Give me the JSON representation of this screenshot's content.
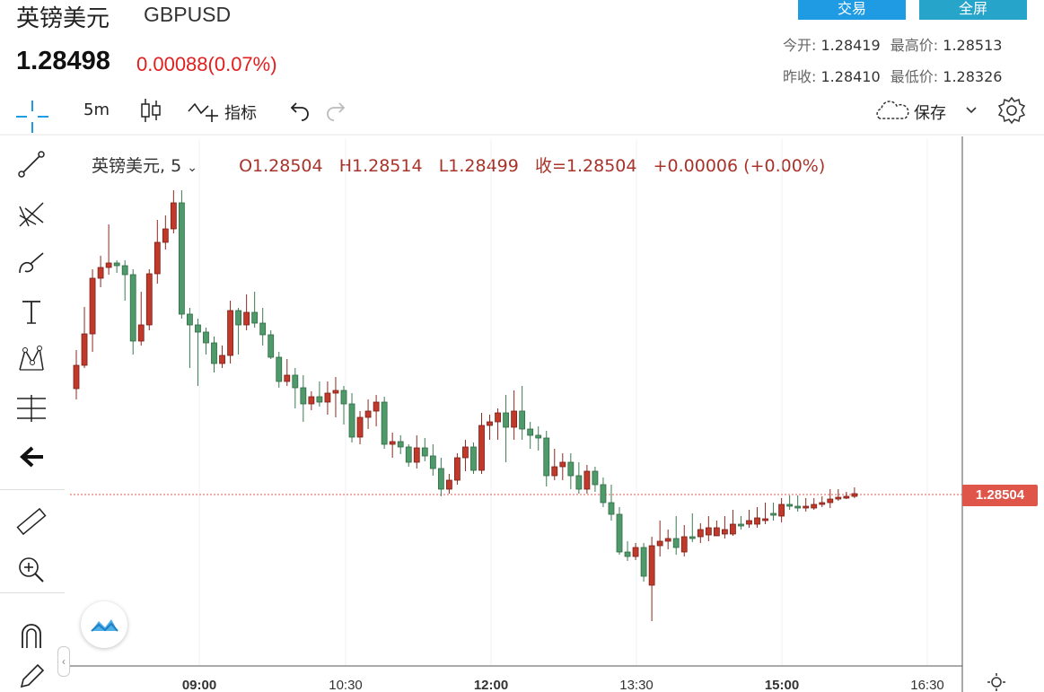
{
  "header": {
    "name_cn": "英镑美元",
    "symbol": "GBPUSD",
    "price": "1.28498",
    "change": "0.00088(0.07%)",
    "trade_button": "交易",
    "fullscreen_button": "全屏",
    "open_label": "今开:",
    "open_value": "1.28419",
    "high_label": "最高价:",
    "high_value": "1.28513",
    "prev_close_label": "昨收:",
    "prev_close_value": "1.28410",
    "low_label": "最低价:",
    "low_value": "1.28326"
  },
  "toolbar": {
    "interval": "5m",
    "indicators_label": "指标",
    "save_label": "保存"
  },
  "legend": {
    "symbol": "英镑美元,",
    "interval": "5",
    "open": "O1.28504",
    "high": "H1.28514",
    "low": "L1.28499",
    "close": "收=1.28504",
    "change": "+0.00006",
    "change_pct": "(+0.00%)"
  },
  "chart": {
    "last_price_label": "1.28504",
    "x_ticks": [
      "09:00",
      "10:30",
      "12:00",
      "13:30",
      "15:00",
      "16:30"
    ],
    "colors": {
      "up": "#c0392b",
      "down": "#4f9a6a",
      "last_line": "#e05a50"
    }
  },
  "chart_data": {
    "type": "candlestick",
    "candles": [
      [
        433,
        407,
        390,
        445
      ],
      [
        407,
        372,
        342,
        410
      ],
      [
        372,
        310,
        300,
        392
      ],
      [
        310,
        298,
        285,
        320
      ],
      [
        298,
        293,
        250,
        306
      ],
      [
        293,
        296,
        290,
        304
      ],
      [
        296,
        306,
        290,
        335
      ],
      [
        306,
        380,
        300,
        395
      ],
      [
        380,
        362,
        325,
        385
      ],
      [
        362,
        305,
        300,
        368
      ],
      [
        305,
        270,
        245,
        316
      ],
      [
        270,
        255,
        240,
        278
      ],
      [
        255,
        226,
        212,
        260
      ],
      [
        226,
        350,
        212,
        355
      ],
      [
        350,
        362,
        343,
        410
      ],
      [
        362,
        370,
        355,
        430
      ],
      [
        370,
        382,
        365,
        395
      ],
      [
        382,
        405,
        375,
        415
      ],
      [
        405,
        396,
        385,
        410
      ],
      [
        396,
        346,
        335,
        405
      ],
      [
        346,
        362,
        343,
        395
      ],
      [
        362,
        348,
        328,
        368
      ],
      [
        348,
        360,
        325,
        365
      ],
      [
        360,
        373,
        343,
        385
      ],
      [
        373,
        398,
        368,
        400
      ],
      [
        398,
        425,
        392,
        432
      ],
      [
        425,
        418,
        400,
        430
      ],
      [
        418,
        432,
        410,
        455
      ],
      [
        432,
        450,
        418,
        470
      ],
      [
        450,
        442,
        436,
        457
      ],
      [
        442,
        448,
        425,
        453
      ],
      [
        448,
        438,
        425,
        462
      ],
      [
        438,
        435,
        420,
        465
      ],
      [
        435,
        450,
        430,
        473
      ],
      [
        450,
        487,
        438,
        493
      ],
      [
        487,
        465,
        458,
        495
      ],
      [
        465,
        458,
        445,
        478
      ],
      [
        458,
        448,
        440,
        475
      ],
      [
        448,
        495,
        442,
        500
      ],
      [
        495,
        492,
        482,
        510
      ],
      [
        492,
        498,
        485,
        506
      ],
      [
        498,
        515,
        495,
        520
      ],
      [
        515,
        499,
        485,
        522
      ],
      [
        499,
        508,
        488,
        514
      ],
      [
        508,
        522,
        495,
        530
      ],
      [
        522,
        545,
        510,
        553
      ],
      [
        545,
        535,
        528,
        550
      ],
      [
        535,
        510,
        505,
        540
      ],
      [
        510,
        498,
        490,
        525
      ],
      [
        498,
        524,
        493,
        528
      ],
      [
        524,
        474,
        460,
        528
      ],
      [
        474,
        470,
        462,
        490
      ],
      [
        470,
        460,
        455,
        490
      ],
      [
        460,
        476,
        440,
        515
      ],
      [
        476,
        458,
        435,
        490
      ],
      [
        458,
        478,
        430,
        490
      ],
      [
        478,
        485,
        470,
        500
      ],
      [
        485,
        488,
        475,
        502
      ],
      [
        488,
        530,
        480,
        542
      ],
      [
        530,
        520,
        500,
        535
      ],
      [
        520,
        515,
        505,
        535
      ],
      [
        515,
        530,
        505,
        545
      ],
      [
        530,
        545,
        515,
        550
      ],
      [
        545,
        525,
        518,
        550
      ],
      [
        525,
        540,
        520,
        548
      ],
      [
        540,
        560,
        532,
        565
      ],
      [
        560,
        573,
        540,
        580
      ],
      [
        573,
        615,
        565,
        618
      ],
      [
        615,
        620,
        603,
        625
      ],
      [
        620,
        610,
        605,
        624
      ],
      [
        610,
        642,
        605,
        648
      ],
      [
        652,
        608,
        598,
        692
      ],
      [
        608,
        603,
        580,
        620
      ],
      [
        603,
        600,
        590,
        612
      ],
      [
        600,
        610,
        575,
        618
      ],
      [
        615,
        598,
        585,
        620
      ],
      [
        598,
        598,
        572,
        604
      ],
      [
        598,
        590,
        583,
        605
      ],
      [
        596,
        588,
        575,
        603
      ],
      [
        597,
        588,
        580,
        596
      ],
      [
        595,
        590,
        575,
        600
      ],
      [
        595,
        584,
        568,
        597
      ],
      [
        584,
        585,
        575,
        590
      ],
      [
        584,
        580,
        568,
        588
      ],
      [
        584,
        577,
        565,
        588
      ],
      [
        580,
        578,
        560,
        584
      ],
      [
        572,
        574,
        560,
        580
      ],
      [
        575,
        562,
        555,
        582
      ],
      [
        562,
        564,
        552,
        568
      ],
      [
        564,
        566,
        552,
        570
      ],
      [
        566,
        564,
        555,
        570
      ],
      [
        566,
        562,
        555,
        568
      ],
      [
        562,
        560,
        553,
        565
      ],
      [
        560,
        556,
        545,
        566
      ],
      [
        556,
        554,
        545,
        558
      ],
      [
        554,
        553,
        548,
        556
      ],
      [
        553,
        550,
        543,
        555
      ]
    ],
    "note_scale": "candle values are vertical pixel positions in the chart pane mapped from price"
  }
}
